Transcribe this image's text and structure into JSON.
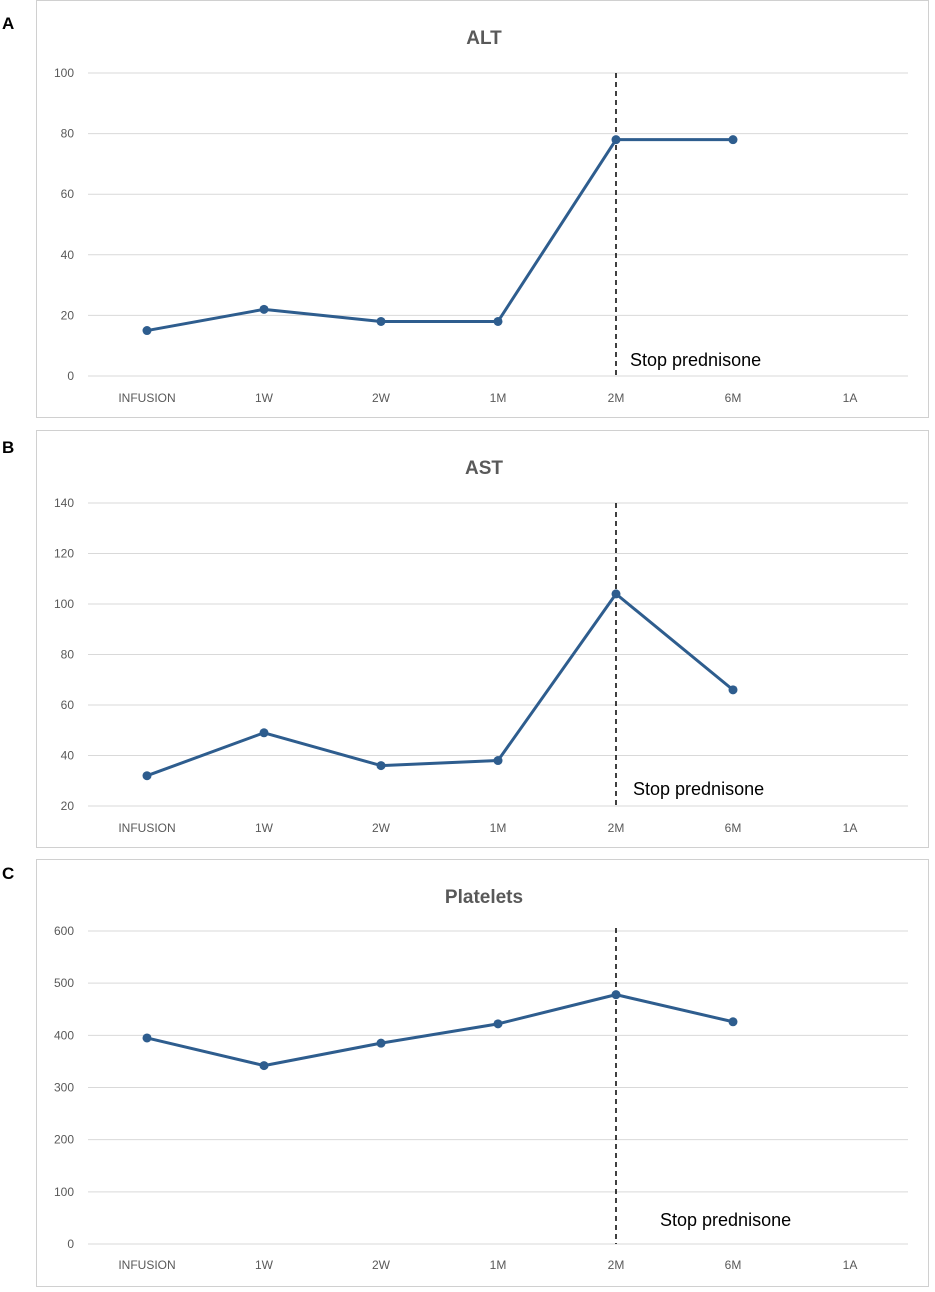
{
  "panels": [
    {
      "letter": "A"
    },
    {
      "letter": "B"
    },
    {
      "letter": "C"
    }
  ],
  "chart_data": [
    {
      "type": "line",
      "title": "ALT",
      "categories": [
        "INFUSION",
        "1W",
        "2W",
        "1M",
        "2M",
        "6M",
        "1A"
      ],
      "series": [
        {
          "name": "ALT",
          "values": [
            15,
            22,
            18,
            18,
            78,
            78,
            null
          ]
        }
      ],
      "ylim": [
        0,
        100
      ],
      "yticks": [
        0,
        20,
        40,
        60,
        80,
        100
      ],
      "xlabel": "",
      "ylabel": "",
      "grid": true,
      "annotation": {
        "text": "Stop prednisone",
        "at_category": "2M"
      },
      "colors": {
        "line": "#2e5d8e",
        "grid": "#d9d9d9",
        "tick_text": "#595959",
        "title": "#595959"
      }
    },
    {
      "type": "line",
      "title": "AST",
      "categories": [
        "INFUSION",
        "1W",
        "2W",
        "1M",
        "2M",
        "6M",
        "1A"
      ],
      "series": [
        {
          "name": "AST",
          "values": [
            32,
            49,
            36,
            38,
            104,
            66,
            null
          ]
        }
      ],
      "ylim": [
        20,
        140
      ],
      "yticks": [
        20,
        40,
        60,
        80,
        100,
        120,
        140
      ],
      "xlabel": "",
      "ylabel": "",
      "grid": true,
      "annotation": {
        "text": "Stop prednisone",
        "at_category": "2M"
      },
      "colors": {
        "line": "#2e5d8e",
        "grid": "#d9d9d9",
        "tick_text": "#595959",
        "title": "#595959"
      }
    },
    {
      "type": "line",
      "title": "Platelets",
      "categories": [
        "INFUSION",
        "1W",
        "2W",
        "1M",
        "2M",
        "6M",
        "1A"
      ],
      "series": [
        {
          "name": "Platelets",
          "values": [
            395,
            342,
            385,
            422,
            478,
            426,
            null
          ]
        }
      ],
      "ylim": [
        0,
        600
      ],
      "yticks": [
        0,
        100,
        200,
        300,
        400,
        500,
        600
      ],
      "xlabel": "",
      "ylabel": "",
      "grid": true,
      "annotation": {
        "text": "Stop prednisone",
        "at_category": "2M"
      },
      "colors": {
        "line": "#2e5d8e",
        "grid": "#d9d9d9",
        "tick_text": "#595959",
        "title": "#595959"
      }
    }
  ]
}
